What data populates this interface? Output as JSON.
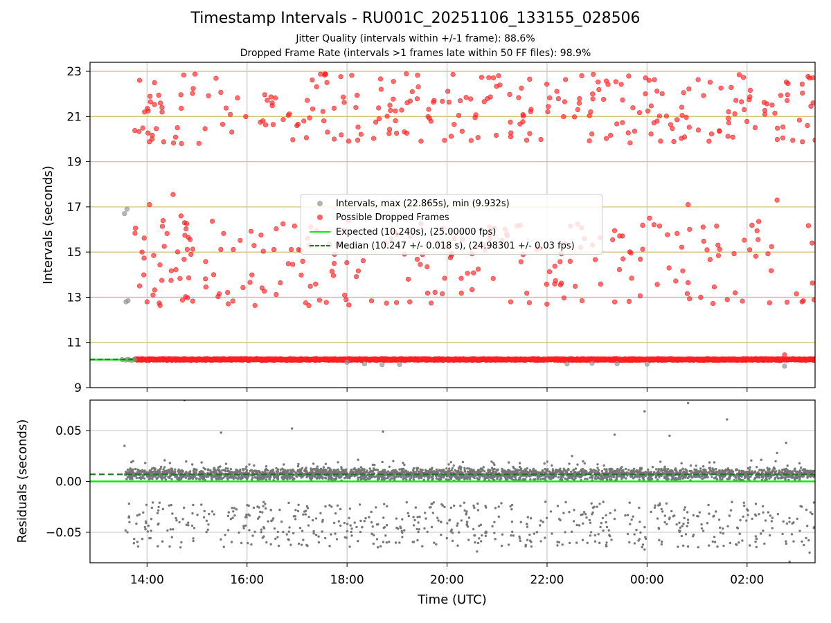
{
  "figure": {
    "title": "Timestamp Intervals - RU001C_20251106_133155_028506",
    "subtitle_jitter": "Jitter Quality (intervals within +/-1 frame): 88.6%",
    "subtitle_dropped": "Dropped Frame Rate (intervals >1 frames late within 50 FF files): 98.9%"
  },
  "colors": {
    "dropped": "#ff2020",
    "normal": "#909090",
    "expected": "#00ee00",
    "median": "#1a7a1a",
    "frame_grid": "#d8c27a",
    "grid": "#c8c8c8",
    "residual": "#777777"
  },
  "legend": {
    "intervals": "Intervals, max (22.865s), min (9.932s)",
    "dropped": "Possible Dropped Frames",
    "expected": "Expected (10.240s), (25.00000 fps)",
    "median": "Median (10.247 +/- 0.018 s), (24.98301 +/- 0.03 fps)"
  },
  "chart_data": [
    {
      "type": "scatter",
      "title": "Timestamp Intervals - RU001C_20251106_133155_028506",
      "xlabel": "",
      "ylabel": "Intervals (seconds)",
      "x_units": "hours since 00:00 2025-11-06 (UTC)",
      "xlim": [
        12.86,
        27.36
      ],
      "ylim": [
        9,
        23.4
      ],
      "yticks": [
        9,
        11,
        13,
        15,
        17,
        19,
        21,
        23
      ],
      "ytick_labels": [
        "9",
        "11",
        "13",
        "15",
        "17",
        "19",
        "21",
        "23"
      ],
      "frame_gridlines": [
        11,
        13,
        15,
        17,
        19,
        21,
        23
      ],
      "expected_interval": 10.24,
      "median_interval": 10.247,
      "interval_max": 22.865,
      "interval_min": 9.932,
      "series": [
        {
          "name": "Intervals, max (22.865s), min (9.932s)",
          "color": "#909090",
          "points": [
            [
              13.55,
              16.7
            ],
            [
              13.6,
              16.9
            ],
            [
              13.58,
              12.8
            ],
            [
              13.62,
              12.85
            ],
            [
              13.5,
              10.24
            ],
            [
              13.57,
              10.22
            ],
            [
              13.61,
              10.25
            ],
            [
              13.65,
              10.23
            ],
            [
              13.7,
              10.21
            ],
            [
              13.75,
              10.24
            ],
            [
              18.0,
              10.12
            ],
            [
              18.35,
              10.05
            ],
            [
              18.7,
              10.02
            ],
            [
              19.05,
              10.03
            ],
            [
              22.4,
              10.05
            ],
            [
              22.9,
              10.08
            ],
            [
              23.4,
              10.06
            ],
            [
              24.0,
              10.04
            ],
            [
              26.75,
              9.95
            ]
          ]
        },
        {
          "name": "Possible Dropped Frames",
          "color": "#ff2020",
          "band_top": {
            "seed": 11,
            "count": 270,
            "x_from": 13.75,
            "x_to": 27.36,
            "y_from": 19.8,
            "y_to": 22.9
          },
          "band_mid": {
            "seed": 23,
            "count": 230,
            "x_from": 13.75,
            "x_to": 27.36,
            "y_from": 12.6,
            "y_to": 16.4
          },
          "band_base": {
            "seed": 37,
            "count": 2600,
            "x_from": 13.75,
            "x_to": 27.36,
            "center": 10.245,
            "spread": 0.045
          },
          "points": [
            [
              13.85,
              22.6
            ],
            [
              13.95,
              21.2
            ],
            [
              14.02,
              21.25
            ],
            [
              14.1,
              20.0
            ],
            [
              14.15,
              22.5
            ],
            [
              14.3,
              21.2
            ],
            [
              14.52,
              17.55
            ],
            [
              14.68,
              16.6
            ],
            [
              14.75,
              16.3
            ],
            [
              14.05,
              17.1
            ],
            [
              13.85,
              13.5
            ],
            [
              13.9,
              15.0
            ],
            [
              14.0,
              12.8
            ],
            [
              14.12,
              13.1
            ],
            [
              16.72,
              16.25
            ],
            [
              16.95,
              16.15
            ],
            [
              23.35,
              15.95
            ],
            [
              24.05,
              16.5
            ],
            [
              24.25,
              16.15
            ],
            [
              24.82,
              17.1
            ],
            [
              26.6,
              17.3
            ],
            [
              25.2,
              15.1
            ],
            [
              26.22,
              15.55
            ],
            [
              26.8,
              12.78
            ],
            [
              27.3,
              15.4
            ],
            [
              27.1,
              12.8
            ],
            [
              26.45,
              12.75
            ],
            [
              27.25,
              22.7
            ],
            [
              27.32,
              21.6
            ],
            [
              27.36,
              19.95
            ],
            [
              26.75,
              10.45
            ]
          ]
        },
        {
          "name": "Expected (10.240s), (25.00000 fps)",
          "color": "#00ee00",
          "type": "line",
          "y": 10.24
        },
        {
          "name": "Median (10.247 +/- 0.018 s), (24.98301 +/- 0.03 fps)",
          "color": "#1a7a1a",
          "type": "line",
          "style": "dashed",
          "y": 10.247
        }
      ]
    },
    {
      "type": "scatter",
      "title": "",
      "xlabel": "Time (UTC)",
      "ylabel": "Residuals (seconds)",
      "x_units": "hours since 00:00 2025-11-06 (UTC)",
      "xlim": [
        12.86,
        27.36
      ],
      "ylim": [
        -0.08,
        0.08
      ],
      "yticks": [
        -0.05,
        0.0,
        0.05
      ],
      "ytick_labels": [
        "−0.05",
        "0.00",
        "0.05"
      ],
      "xticks": [
        14,
        16,
        18,
        20,
        22,
        24,
        26
      ],
      "xtick_labels": [
        "14:00",
        "16:00",
        "18:00",
        "20:00",
        "22:00",
        "00:00",
        "02:00"
      ],
      "expected_residual": 0.0,
      "median_residual": 0.007,
      "series": [
        {
          "name": "Residuals",
          "color": "#777777",
          "main_band": {
            "seed": 51,
            "count": 3200,
            "x_from": 13.55,
            "x_to": 27.36,
            "center": 0.007,
            "spread": 0.0065
          },
          "negative_band": {
            "seed": 73,
            "count": 600,
            "x_from": 13.55,
            "x_to": 27.36,
            "y_from": -0.065,
            "y_to": -0.02
          },
          "points": [
            [
              13.55,
              0.035
            ],
            [
              13.72,
              0.02
            ],
            [
              14.75,
              0.08
            ],
            [
              15.48,
              0.048
            ],
            [
              16.9,
              0.052
            ],
            [
              18.72,
              0.049
            ],
            [
              22.5,
              0.025
            ],
            [
              23.35,
              0.046
            ],
            [
              23.95,
              0.069
            ],
            [
              24.45,
              0.045
            ],
            [
              24.82,
              0.077
            ],
            [
              25.6,
              0.061
            ],
            [
              26.78,
              0.038
            ],
            [
              26.6,
              0.028
            ],
            [
              20.6,
              -0.069
            ],
            [
              23.95,
              -0.067
            ],
            [
              24.82,
              -0.064
            ],
            [
              26.85,
              -0.079
            ],
            [
              27.25,
              -0.07
            ]
          ]
        },
        {
          "name": "Expected",
          "color": "#00ee00",
          "type": "line",
          "y": 0.0
        },
        {
          "name": "Median",
          "color": "#1a7a1a",
          "type": "line",
          "style": "dashed",
          "y": 0.007
        }
      ]
    }
  ]
}
